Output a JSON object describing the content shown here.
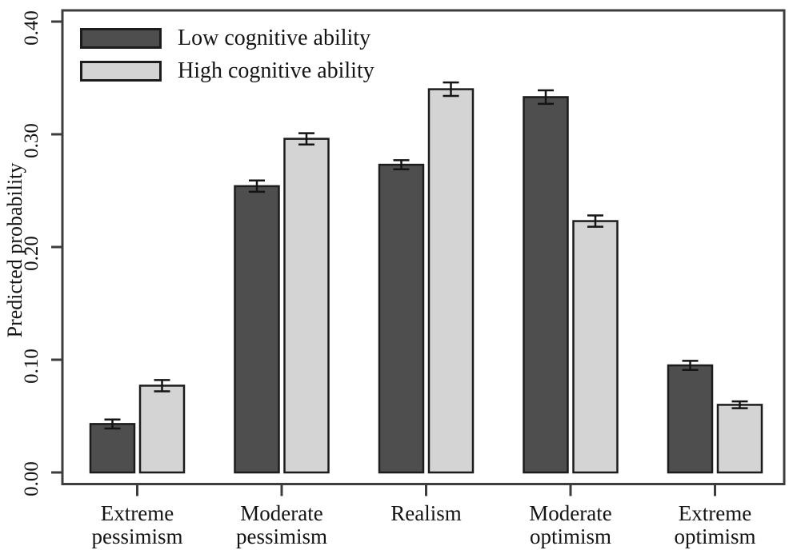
{
  "chart_data": {
    "type": "bar",
    "title": "",
    "xlabel": "",
    "ylabel": "Predicted probability",
    "ylim": [
      0.0,
      0.4
    ],
    "yticks": [
      0.0,
      0.1,
      0.2,
      0.3,
      0.4
    ],
    "ytick_labels": [
      "0.00",
      "0.10",
      "0.20",
      "0.30",
      "0.40"
    ],
    "grid": false,
    "legend_position": "top-left",
    "error_bars": true,
    "categories": [
      "Extreme pessimism",
      "Moderate pessimism",
      "Realism",
      "Moderate optimism",
      "Extreme optimism"
    ],
    "category_label_lines": [
      [
        "Extreme",
        "pessimism"
      ],
      [
        "Moderate",
        "pessimism"
      ],
      [
        "Realism"
      ],
      [
        "Moderate",
        "optimism"
      ],
      [
        "Extreme",
        "optimism"
      ]
    ],
    "series": [
      {
        "name": "Low cognitive ability",
        "color": "#4e4e4e",
        "values": [
          0.043,
          0.254,
          0.273,
          0.333,
          0.095
        ],
        "errors": [
          0.004,
          0.005,
          0.004,
          0.006,
          0.004
        ]
      },
      {
        "name": "High cognitive ability",
        "color": "#d4d4d4",
        "values": [
          0.077,
          0.296,
          0.34,
          0.223,
          0.06
        ],
        "errors": [
          0.005,
          0.005,
          0.006,
          0.005,
          0.003
        ]
      }
    ]
  },
  "style_colors": {
    "bar_border": "#1c1c1c",
    "frame": "#3d3d3d",
    "text": "#141414",
    "error_bar": "#141414",
    "background": "#ffffff"
  }
}
